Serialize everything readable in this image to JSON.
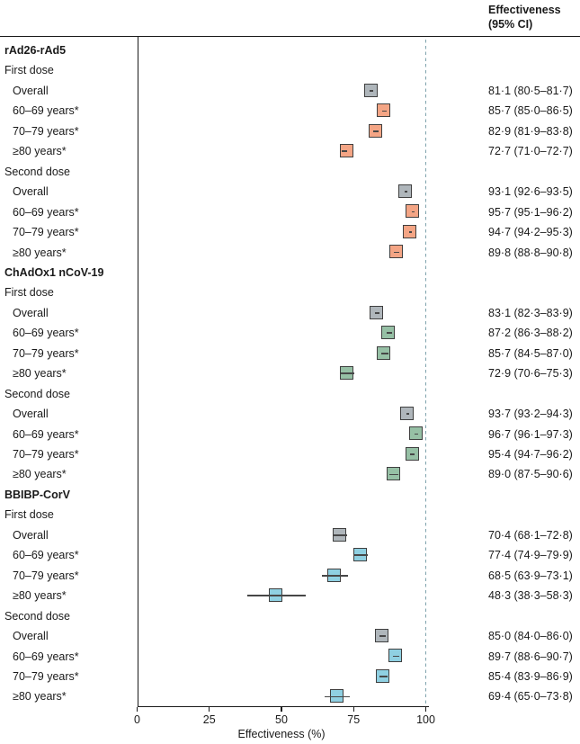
{
  "header": {
    "line1": "Effectiveness",
    "line2": "(95% CI)"
  },
  "colors": {
    "gray": "#afb6bb",
    "salmon": "#f4a585",
    "green": "#96c0a5",
    "blue": "#8fd0e2",
    "box_border": "#3f3f3f",
    "whisker": "#474747",
    "reference_line": "#7fa3ad",
    "rule": "#1a1a1a"
  },
  "chart_data": {
    "type": "scatter",
    "variant": "forest-plot",
    "xlabel": "Effectiveness (%)",
    "xlim": [
      0,
      100
    ],
    "xticks": [
      "0",
      "25",
      "50",
      "75",
      "100"
    ],
    "xtick_values": [
      0,
      25,
      50,
      75,
      100
    ],
    "reference_line_x": 100,
    "value_column_header": "Effectiveness (95% CI)",
    "rows": [
      {
        "kind": "section",
        "label": "rAd26-rAd5"
      },
      {
        "kind": "dose",
        "label": "First dose"
      },
      {
        "kind": "data",
        "label": "Overall",
        "est": 81.1,
        "lo": 80.5,
        "hi": 81.7,
        "color": "gray",
        "value": "81·1 (80·5–81·7)"
      },
      {
        "kind": "data",
        "label": "60–69 years*",
        "est": 85.7,
        "lo": 85.0,
        "hi": 86.5,
        "color": "salmon",
        "value": "85·7 (85·0–86·5)"
      },
      {
        "kind": "data",
        "label": "70–79 years*",
        "est": 82.9,
        "lo": 81.9,
        "hi": 83.8,
        "color": "salmon",
        "value": "82·9 (81·9–83·8)"
      },
      {
        "kind": "data",
        "label": "≥80 years*",
        "est": 72.7,
        "lo": 71.0,
        "hi": 72.7,
        "color": "salmon",
        "value": "72·7 (71·0–72·7)"
      },
      {
        "kind": "dose",
        "label": "Second dose"
      },
      {
        "kind": "data",
        "label": "Overall",
        "est": 93.1,
        "lo": 92.6,
        "hi": 93.5,
        "color": "gray",
        "value": "93·1 (92·6–93·5)"
      },
      {
        "kind": "data",
        "label": "60–69 years*",
        "est": 95.7,
        "lo": 95.1,
        "hi": 96.2,
        "color": "salmon",
        "value": "95·7 (95·1–96·2)"
      },
      {
        "kind": "data",
        "label": "70–79 years*",
        "est": 94.7,
        "lo": 94.2,
        "hi": 95.3,
        "color": "salmon",
        "value": "94·7 (94·2–95·3)"
      },
      {
        "kind": "data",
        "label": "≥80 years*",
        "est": 89.8,
        "lo": 88.8,
        "hi": 90.8,
        "color": "salmon",
        "value": "89·8 (88·8–90·8)"
      },
      {
        "kind": "section",
        "label": "ChAdOx1 nCoV-19"
      },
      {
        "kind": "dose",
        "label": "First dose"
      },
      {
        "kind": "data",
        "label": "Overall",
        "est": 83.1,
        "lo": 82.3,
        "hi": 83.9,
        "color": "gray",
        "value": "83·1 (82·3–83·9)"
      },
      {
        "kind": "data",
        "label": "60–69 years*",
        "est": 87.2,
        "lo": 86.3,
        "hi": 88.2,
        "color": "green",
        "value": "87·2 (86·3–88·2)"
      },
      {
        "kind": "data",
        "label": "70–79 years*",
        "est": 85.7,
        "lo": 84.5,
        "hi": 87.0,
        "color": "green",
        "value": "85·7 (84·5–87·0)"
      },
      {
        "kind": "data",
        "label": "≥80 years*",
        "est": 72.9,
        "lo": 70.6,
        "hi": 75.3,
        "color": "green",
        "value": "72·9 (70·6–75·3)"
      },
      {
        "kind": "dose",
        "label": "Second dose"
      },
      {
        "kind": "data",
        "label": "Overall",
        "est": 93.7,
        "lo": 93.2,
        "hi": 94.3,
        "color": "gray",
        "value": "93·7 (93·2–94·3)"
      },
      {
        "kind": "data",
        "label": "60–69 years*",
        "est": 96.7,
        "lo": 96.1,
        "hi": 97.3,
        "color": "green",
        "value": "96·7 (96·1–97·3)"
      },
      {
        "kind": "data",
        "label": "70–79 years*",
        "est": 95.4,
        "lo": 94.7,
        "hi": 96.2,
        "color": "green",
        "value": "95·4 (94·7–96·2)"
      },
      {
        "kind": "data",
        "label": "≥80 years*",
        "est": 89.0,
        "lo": 87.5,
        "hi": 90.6,
        "color": "green",
        "value": "89·0 (87·5–90·6)"
      },
      {
        "kind": "section",
        "label": "BBIBP-CorV"
      },
      {
        "kind": "dose",
        "label": "First dose"
      },
      {
        "kind": "data",
        "label": "Overall",
        "est": 70.4,
        "lo": 68.1,
        "hi": 72.8,
        "color": "gray",
        "value": "70·4 (68·1–72·8)"
      },
      {
        "kind": "data",
        "label": "60–69 years*",
        "est": 77.4,
        "lo": 74.9,
        "hi": 79.9,
        "color": "blue",
        "value": "77·4 (74·9–79·9)"
      },
      {
        "kind": "data",
        "label": "70–79 years*",
        "est": 68.5,
        "lo": 63.9,
        "hi": 73.1,
        "color": "blue",
        "value": "68·5 (63·9–73·1)"
      },
      {
        "kind": "data",
        "label": "≥80 years*",
        "est": 48.3,
        "lo": 38.3,
        "hi": 58.3,
        "color": "blue",
        "value": "48·3 (38·3–58·3)"
      },
      {
        "kind": "dose",
        "label": "Second dose"
      },
      {
        "kind": "data",
        "label": "Overall",
        "est": 85.0,
        "lo": 84.0,
        "hi": 86.0,
        "color": "gray",
        "value": "85·0 (84·0–86·0)"
      },
      {
        "kind": "data",
        "label": "60–69 years*",
        "est": 89.7,
        "lo": 88.6,
        "hi": 90.7,
        "color": "blue",
        "value": "89·7 (88·6–90·7)"
      },
      {
        "kind": "data",
        "label": "70–79 years*",
        "est": 85.4,
        "lo": 83.9,
        "hi": 86.9,
        "color": "blue",
        "value": "85·4 (83·9–86·9)"
      },
      {
        "kind": "data",
        "label": "≥80 years*",
        "est": 69.4,
        "lo": 65.0,
        "hi": 73.8,
        "color": "blue",
        "value": "69·4 (65·0–73·8)"
      }
    ]
  }
}
